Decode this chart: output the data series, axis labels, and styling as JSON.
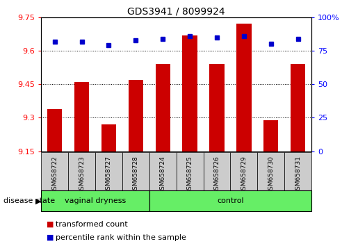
{
  "title": "GDS3941 / 8099924",
  "samples": [
    "GSM658722",
    "GSM658723",
    "GSM658727",
    "GSM658728",
    "GSM658724",
    "GSM658725",
    "GSM658726",
    "GSM658729",
    "GSM658730",
    "GSM658731"
  ],
  "bar_values": [
    9.34,
    9.46,
    9.27,
    9.47,
    9.54,
    9.67,
    9.54,
    9.72,
    9.29,
    9.54
  ],
  "percentile_values": [
    82,
    82,
    79,
    83,
    84,
    86,
    85,
    86,
    80,
    84
  ],
  "ymin": 9.15,
  "ymax": 9.75,
  "yticks": [
    9.15,
    9.3,
    9.45,
    9.6,
    9.75
  ],
  "ytick_labels": [
    "9.15",
    "9.3",
    "9.45",
    "9.6",
    "9.75"
  ],
  "y2min": 0,
  "y2max": 100,
  "y2ticks": [
    0,
    25,
    50,
    75,
    100
  ],
  "y2tick_labels": [
    "0",
    "25",
    "50",
    "75",
    "100%"
  ],
  "bar_color": "#cc0000",
  "dot_color": "#0000cc",
  "group1_label": "vaginal dryness",
  "group2_label": "control",
  "group1_count": 4,
  "group2_count": 6,
  "group_bg_color": "#66ee66",
  "sample_bg_color": "#cccccc",
  "legend_bar_label": "transformed count",
  "legend_dot_label": "percentile rank within the sample",
  "disease_state_label": "disease state"
}
